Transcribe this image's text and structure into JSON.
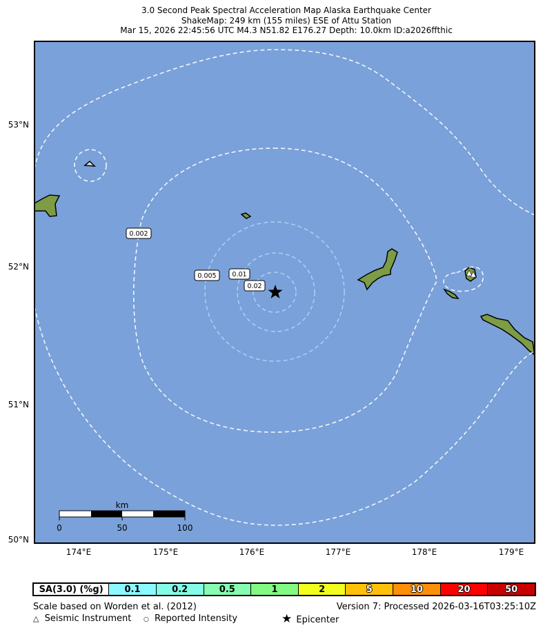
{
  "title": {
    "line1": "3.0 Second Peak Spectral Acceleration Map Alaska Earthquake Center",
    "line2": "ShakeMap: 249 km (155 miles) ESE of Attu Station",
    "line3": "Mar 15, 2026 22:45:56 UTC M4.3 N51.82 E176.27 Depth: 10.0km ID:a2026ffthic"
  },
  "map": {
    "ocean_color": "#7aa1d9",
    "land_color": "#7d9c45",
    "lat_ticks": [
      "53°N",
      "52°N",
      "51°N",
      "50°N"
    ],
    "lon_ticks": [
      "174°E",
      "175°E",
      "176°E",
      "177°E",
      "178°E",
      "179°E"
    ],
    "contour_labels": [
      "0.002",
      "0.005",
      "0.01",
      "0.02"
    ],
    "epicenter": {
      "lat": 51.82,
      "lon": 176.27,
      "icon": "star-icon"
    },
    "scale_bar": {
      "unit": "km",
      "labels": [
        "0",
        "50",
        "100"
      ]
    }
  },
  "legend": {
    "title": "SA(3.0) (%g)",
    "bins": [
      {
        "label": "0.1",
        "color": "#8cf8ff"
      },
      {
        "label": "0.2",
        "color": "#84fbe6"
      },
      {
        "label": "0.5",
        "color": "#86fcb2"
      },
      {
        "label": "1",
        "color": "#82f982"
      },
      {
        "label": "2",
        "color": "#f2ff1c"
      },
      {
        "label": "5",
        "color": "#ffc107"
      },
      {
        "label": "10",
        "color": "#ff8e08"
      },
      {
        "label": "20",
        "color": "#ff0000"
      },
      {
        "label": "50",
        "color": "#c80000"
      }
    ]
  },
  "footer": {
    "scale_note": "Scale based on Worden et al. (2012)",
    "version": "Version 7: Processed 2026-03-16T03:25:10Z",
    "seismic_instrument": "Seismic Instrument",
    "reported_intensity": "Reported Intensity",
    "epicenter": "Epicenter"
  }
}
